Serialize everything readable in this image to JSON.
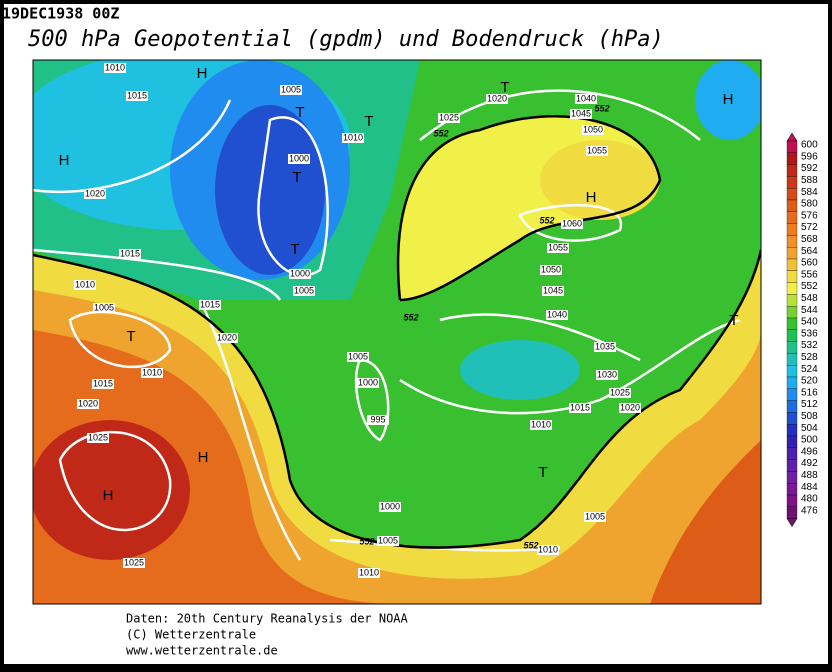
{
  "header": {
    "date": "19DEC1938 00Z",
    "title": "500 hPa Geopotential (gpdm) und Bodendruck (hPa)"
  },
  "footer": {
    "lines": [
      "Daten: 20th Century Reanalysis der NOAA",
      "(C) Wetterzentrale",
      "www.wetterzentrale.de"
    ]
  },
  "colorbar": {
    "ticks": [
      600,
      596,
      592,
      588,
      584,
      580,
      576,
      572,
      568,
      564,
      560,
      556,
      552,
      548,
      544,
      540,
      536,
      532,
      528,
      524,
      520,
      516,
      512,
      508,
      504,
      500,
      496,
      492,
      488,
      484,
      480,
      476
    ],
    "colors": [
      "#c01050",
      "#b01818",
      "#c02818",
      "#cc3818",
      "#d44a18",
      "#dc5c18",
      "#e46c1c",
      "#ec7e20",
      "#f09028",
      "#f0a430",
      "#f0c038",
      "#f0dc40",
      "#f0f048",
      "#b8e038",
      "#78d030",
      "#38c030",
      "#20c058",
      "#20c088",
      "#20c0b8",
      "#20c0e0",
      "#20acf0",
      "#208cf0",
      "#206ce0",
      "#2050d0",
      "#2430c0",
      "#3420b0",
      "#4c20b0",
      "#6020a8",
      "#7020a0",
      "#7c1898",
      "#801088",
      "#701070"
    ]
  },
  "pressure_systems": [
    "H",
    "H",
    "T",
    "T",
    "T",
    "T",
    "T",
    "H",
    "H",
    "T",
    "T",
    "H",
    "H",
    "T"
  ],
  "isobar_labels": [
    1010,
    1015,
    1005,
    1010,
    1025,
    1020,
    1040,
    1045,
    1050,
    1055,
    1020,
    1000,
    1015,
    1010,
    1000,
    1005,
    1005,
    1015,
    1020,
    1060,
    1055,
    1050,
    1045,
    1040,
    1035,
    1030,
    1025,
    1020,
    1010,
    1015,
    1020,
    1005,
    1000,
    995,
    1015,
    1010,
    1025,
    1000,
    1005,
    1010,
    1005,
    1010,
    1025
  ],
  "height_labels": [
    552,
    552,
    552,
    552,
    552,
    552
  ]
}
